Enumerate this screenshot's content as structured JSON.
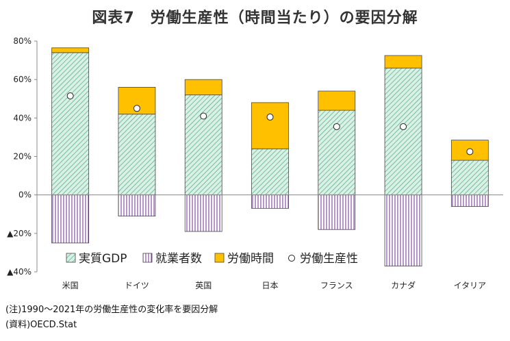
{
  "title": "図表7　労働生産性（時間当たり）の要因分解",
  "notes": {
    "note1": "(注)1990～2021年の労働生産性の変化率を要因分解",
    "note2": "(資料)OECD.Stat"
  },
  "colors": {
    "gdp_fill": "#d9f0e4",
    "gdp_hatch": "#3a9e77",
    "employment_fill": "#ffffff",
    "employment_hatch": "#7b3fa0",
    "hours_fill": "#ffc000",
    "productivity_marker": "#ffffff",
    "axis": "#888888"
  },
  "chart_data": {
    "type": "bar",
    "stacked": true,
    "categories": [
      "米国",
      "ドイツ",
      "英国",
      "日本",
      "フランス",
      "カナダ",
      "イタリア"
    ],
    "series": [
      {
        "name": "実質GDP",
        "kind": "bar",
        "values": [
          74,
          42,
          52,
          24,
          44,
          66,
          18
        ]
      },
      {
        "name": "就業者数",
        "kind": "bar",
        "values": [
          -25,
          -11,
          -19,
          -7,
          -18,
          -37,
          -6
        ]
      },
      {
        "name": "労働時間",
        "kind": "bar",
        "values": [
          2.5,
          14,
          8,
          24,
          10,
          6.5,
          10.5
        ]
      },
      {
        "name": "労働生産性",
        "kind": "marker",
        "values": [
          51.5,
          45,
          41,
          40.5,
          35.5,
          35.5,
          22.5
        ]
      }
    ],
    "yticks": [
      80,
      60,
      40,
      20,
      0,
      -20,
      -40
    ],
    "ytick_labels": [
      "80%",
      "60%",
      "40%",
      "20%",
      "0%",
      "▲20%",
      "▲40%"
    ],
    "ylim": [
      -40,
      80
    ],
    "legend_position": "bottom-center",
    "grid": false
  }
}
